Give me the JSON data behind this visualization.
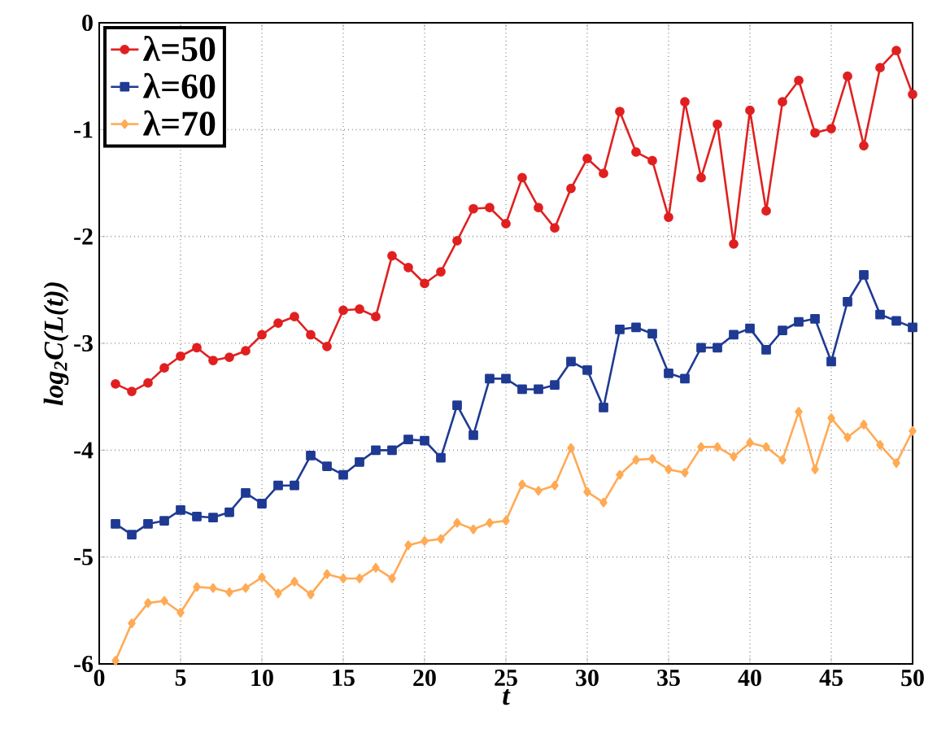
{
  "chart_data": {
    "type": "line",
    "xlabel": "t",
    "ylabel": "log$_{2}$C(L(t))",
    "x": [
      1,
      2,
      3,
      4,
      5,
      6,
      7,
      8,
      9,
      10,
      11,
      12,
      13,
      14,
      15,
      16,
      17,
      18,
      19,
      20,
      21,
      22,
      23,
      24,
      25,
      26,
      27,
      28,
      29,
      30,
      31,
      32,
      33,
      34,
      35,
      36,
      37,
      38,
      39,
      40,
      41,
      42,
      43,
      44,
      45,
      46,
      47,
      48,
      49,
      50
    ],
    "xlim": [
      0,
      50
    ],
    "xticks": [
      0,
      5,
      10,
      15,
      20,
      25,
      30,
      35,
      40,
      45,
      50
    ],
    "ylim": [
      -6,
      0
    ],
    "yticks": [
      -6,
      -5,
      -4,
      -3,
      -2,
      -1,
      0
    ],
    "grid": true,
    "legend": "top left",
    "line_style": "solid",
    "series": [
      {
        "name": "λ=50",
        "color": "#e02020",
        "marker": "circle",
        "values": [
          -3.38,
          -3.45,
          -3.37,
          -3.23,
          -3.12,
          -3.04,
          -3.16,
          -3.13,
          -3.07,
          -2.92,
          -2.81,
          -2.75,
          -2.92,
          -3.03,
          -2.69,
          -2.68,
          -2.75,
          -2.18,
          -2.29,
          -2.44,
          -2.33,
          -2.04,
          -1.74,
          -1.73,
          -1.88,
          -1.45,
          -1.73,
          -1.92,
          -1.55,
          -1.27,
          -1.41,
          -0.83,
          -1.21,
          -1.29,
          -1.82,
          -0.74,
          -1.45,
          -0.95,
          -2.07,
          -0.82,
          -1.76,
          -0.74,
          -0.54,
          -1.03,
          -0.99,
          -0.5,
          -1.15,
          -0.42,
          -0.26,
          -0.67
        ]
      },
      {
        "name": "λ=60",
        "color": "#1f3a93",
        "marker": "square",
        "values": [
          -4.69,
          -4.79,
          -4.69,
          -4.66,
          -4.56,
          -4.62,
          -4.63,
          -4.58,
          -4.4,
          -4.5,
          -4.33,
          -4.33,
          -4.05,
          -4.15,
          -4.23,
          -4.11,
          -4.0,
          -4.0,
          -3.9,
          -3.91,
          -4.07,
          -3.58,
          -3.86,
          -3.33,
          -3.33,
          -3.43,
          -3.43,
          -3.39,
          -3.17,
          -3.25,
          -3.6,
          -2.87,
          -2.85,
          -2.91,
          -3.28,
          -3.33,
          -3.04,
          -3.04,
          -2.92,
          -2.86,
          -3.06,
          -2.88,
          -2.8,
          -2.77,
          -3.17,
          -2.61,
          -2.36,
          -2.73,
          -2.79,
          -2.85
        ]
      },
      {
        "name": "λ=70",
        "color": "#ffaa55",
        "marker": "diamond",
        "values": [
          -5.97,
          -5.62,
          -5.43,
          -5.41,
          -5.52,
          -5.28,
          -5.29,
          -5.33,
          -5.29,
          -5.19,
          -5.34,
          -5.23,
          -5.35,
          -5.16,
          -5.2,
          -5.2,
          -5.1,
          -5.2,
          -4.89,
          -4.85,
          -4.83,
          -4.68,
          -4.74,
          -4.68,
          -4.66,
          -4.32,
          -4.38,
          -4.33,
          -3.98,
          -4.39,
          -4.49,
          -4.23,
          -4.09,
          -4.08,
          -4.18,
          -4.21,
          -3.97,
          -3.97,
          -4.06,
          -3.93,
          -3.97,
          -4.09,
          -3.64,
          -4.18,
          -3.7,
          -3.88,
          -3.76,
          -3.95,
          -4.12,
          -3.82
        ]
      }
    ]
  }
}
